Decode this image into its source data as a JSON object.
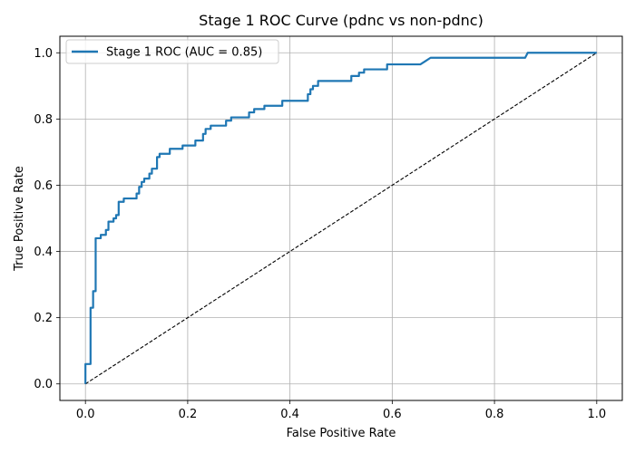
{
  "chart_data": {
    "type": "line",
    "title": "Stage 1 ROC Curve (pdnc vs non-pdnc)",
    "xlabel": "False Positive Rate",
    "ylabel": "True Positive Rate",
    "xlim": [
      -0.05,
      1.05
    ],
    "ylim": [
      -0.05,
      1.05
    ],
    "x_ticks": [
      "0.0",
      "0.2",
      "0.4",
      "0.6",
      "0.8",
      "1.0"
    ],
    "y_ticks": [
      "0.0",
      "0.2",
      "0.4",
      "0.6",
      "0.8",
      "1.0"
    ],
    "grid": true,
    "legend_position": "top-left",
    "series": [
      {
        "name": "Stage 1 ROC (AUC = 0.85)",
        "color": "#1f77b4",
        "style": "solid",
        "x": [
          0.0,
          0.0,
          0.01,
          0.01,
          0.015,
          0.015,
          0.02,
          0.02,
          0.03,
          0.03,
          0.04,
          0.04,
          0.045,
          0.045,
          0.055,
          0.055,
          0.06,
          0.06,
          0.065,
          0.065,
          0.075,
          0.075,
          0.1,
          0.1,
          0.105,
          0.105,
          0.11,
          0.11,
          0.115,
          0.115,
          0.125,
          0.125,
          0.13,
          0.13,
          0.14,
          0.14,
          0.145,
          0.145,
          0.165,
          0.165,
          0.19,
          0.19,
          0.215,
          0.215,
          0.23,
          0.23,
          0.235,
          0.235,
          0.245,
          0.245,
          0.275,
          0.275,
          0.285,
          0.285,
          0.32,
          0.32,
          0.33,
          0.33,
          0.35,
          0.35,
          0.385,
          0.385,
          0.435,
          0.435,
          0.44,
          0.44,
          0.445,
          0.445,
          0.455,
          0.455,
          0.52,
          0.52,
          0.535,
          0.535,
          0.545,
          0.545,
          0.59,
          0.59,
          0.655,
          0.665,
          0.675,
          0.675,
          0.86,
          0.865,
          1.0
        ],
        "y": [
          0.0,
          0.06,
          0.06,
          0.23,
          0.23,
          0.28,
          0.28,
          0.44,
          0.44,
          0.45,
          0.45,
          0.465,
          0.465,
          0.49,
          0.49,
          0.5,
          0.5,
          0.51,
          0.51,
          0.55,
          0.55,
          0.56,
          0.56,
          0.575,
          0.575,
          0.595,
          0.595,
          0.61,
          0.61,
          0.62,
          0.62,
          0.635,
          0.635,
          0.65,
          0.65,
          0.685,
          0.685,
          0.695,
          0.695,
          0.71,
          0.71,
          0.72,
          0.72,
          0.735,
          0.735,
          0.755,
          0.755,
          0.77,
          0.77,
          0.78,
          0.78,
          0.795,
          0.795,
          0.805,
          0.805,
          0.82,
          0.82,
          0.83,
          0.83,
          0.84,
          0.84,
          0.855,
          0.855,
          0.875,
          0.875,
          0.89,
          0.89,
          0.9,
          0.9,
          0.915,
          0.915,
          0.93,
          0.93,
          0.94,
          0.94,
          0.95,
          0.95,
          0.965,
          0.965,
          0.975,
          0.985,
          0.985,
          0.985,
          1.0,
          1.0
        ]
      },
      {
        "name": "",
        "color": "#000000",
        "style": "dashed",
        "x": [
          0.0,
          1.0
        ],
        "y": [
          0.0,
          1.0
        ]
      }
    ]
  }
}
